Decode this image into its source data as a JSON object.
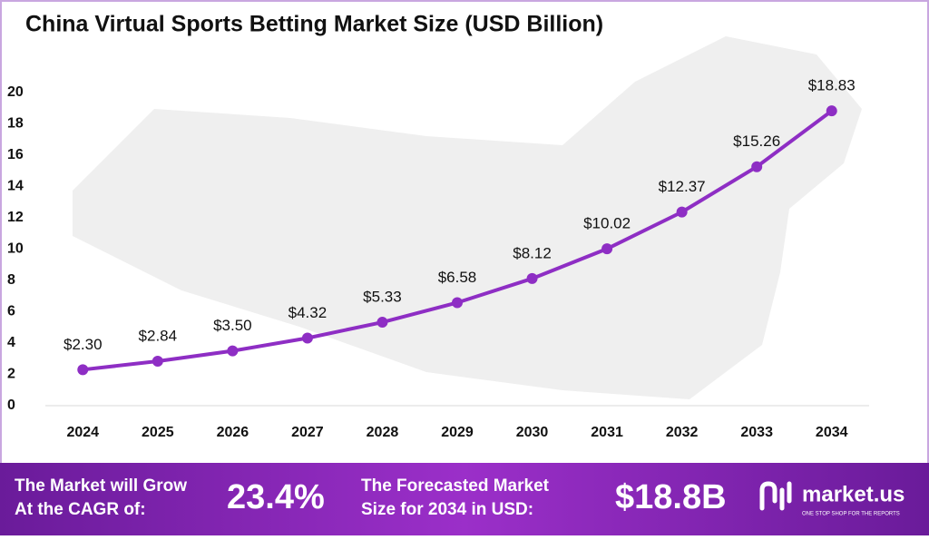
{
  "chart_data": {
    "type": "line",
    "title": "China Virtual Sports Betting Market Size (USD Billion)",
    "categories": [
      "2024",
      "2025",
      "2026",
      "2027",
      "2028",
      "2029",
      "2030",
      "2031",
      "2032",
      "2033",
      "2034"
    ],
    "series": [
      {
        "color": "#8e2ec4",
        "values": [
          2.3,
          2.84,
          3.5,
          4.32,
          5.33,
          6.58,
          8.12,
          10.02,
          12.37,
          15.26,
          18.83
        ],
        "value_labels": [
          "$2.30",
          "$2.84",
          "$3.50",
          "$4.32",
          "$5.33",
          "$6.58",
          "$8.12",
          "$10.02",
          "$12.37",
          "$15.26",
          "$18.83"
        ]
      }
    ],
    "ylim": [
      0,
      20
    ],
    "yticks": [
      0,
      2,
      4,
      6,
      8,
      10,
      12,
      14,
      16,
      18,
      20
    ],
    "grid": false
  },
  "footer": {
    "cagr_text": [
      "The Market will Grow",
      "At the CAGR of:"
    ],
    "cagr_value": "23.4%",
    "forecast_text": [
      "The Forecasted Market",
      "Size for 2034 in USD:"
    ],
    "forecast_value": "$18.8B",
    "brand": "market.us",
    "tagline": "ONE STOP SHOP FOR THE REPORTS"
  }
}
